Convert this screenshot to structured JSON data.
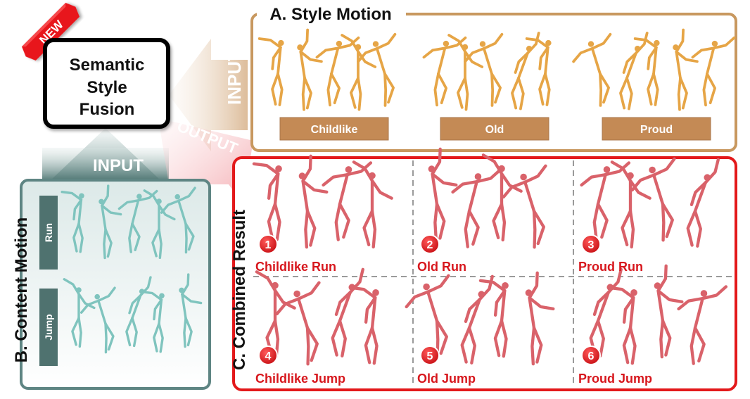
{
  "badge": {
    "text": "NEW"
  },
  "center": {
    "line1": "Semantic",
    "line2": "Style",
    "line3": "Fusion"
  },
  "style_panel": {
    "title": "A. Style Motion",
    "input_label": "INPUT",
    "styles": [
      {
        "label": "Childlike"
      },
      {
        "label": "Old"
      },
      {
        "label": "Proud"
      }
    ],
    "figure_color": "#E6A546"
  },
  "content_panel": {
    "title": "B. Content Motion",
    "input_label": "INPUT",
    "motions": [
      {
        "label": "Run"
      },
      {
        "label": "Jump"
      }
    ],
    "figure_color": "#7FC4BE"
  },
  "output_label": "OUTPUT",
  "result_panel": {
    "title": "C. Combined Result",
    "figure_color": "#D9626A",
    "cells": [
      {
        "num": "1",
        "label": "Childlike Run"
      },
      {
        "num": "2",
        "label": "Old Run"
      },
      {
        "num": "3",
        "label": "Proud Run"
      },
      {
        "num": "4",
        "label": "Childlike Jump"
      },
      {
        "num": "5",
        "label": "Old Jump"
      },
      {
        "num": "6",
        "label": "Proud Jump"
      }
    ]
  },
  "colors": {
    "style_border": "#C8985F",
    "style_label_bg": "#C48A55",
    "content_border": "#5E8583",
    "content_label_bg": "#4F726F",
    "result_border": "#E3191B",
    "result_text": "#D7171D",
    "badge_red": "#E8141B"
  }
}
